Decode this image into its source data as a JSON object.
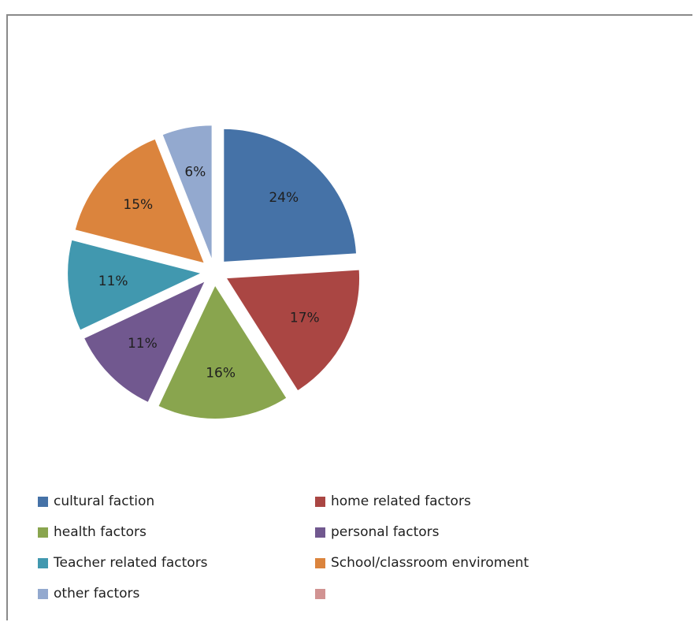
{
  "chart_data": {
    "type": "pie",
    "title": "",
    "labels": [
      "cultural faction",
      "home related factors",
      "health factors",
      "personal factors",
      "Teacher related factors",
      "School/classroom enviroment",
      "other factors",
      ""
    ],
    "values": [
      24,
      17,
      16,
      11,
      11,
      15,
      6,
      0
    ],
    "value_labels": [
      "24%",
      "17%",
      "16%",
      "11%",
      "11%",
      "15%",
      "6%",
      ""
    ],
    "colors": [
      "#4572a7",
      "#aa4643",
      "#89a54e",
      "#71588f",
      "#4198af",
      "#db843d",
      "#93a9cf",
      "#d19392"
    ],
    "exploded": true,
    "legend_position": "bottom"
  }
}
